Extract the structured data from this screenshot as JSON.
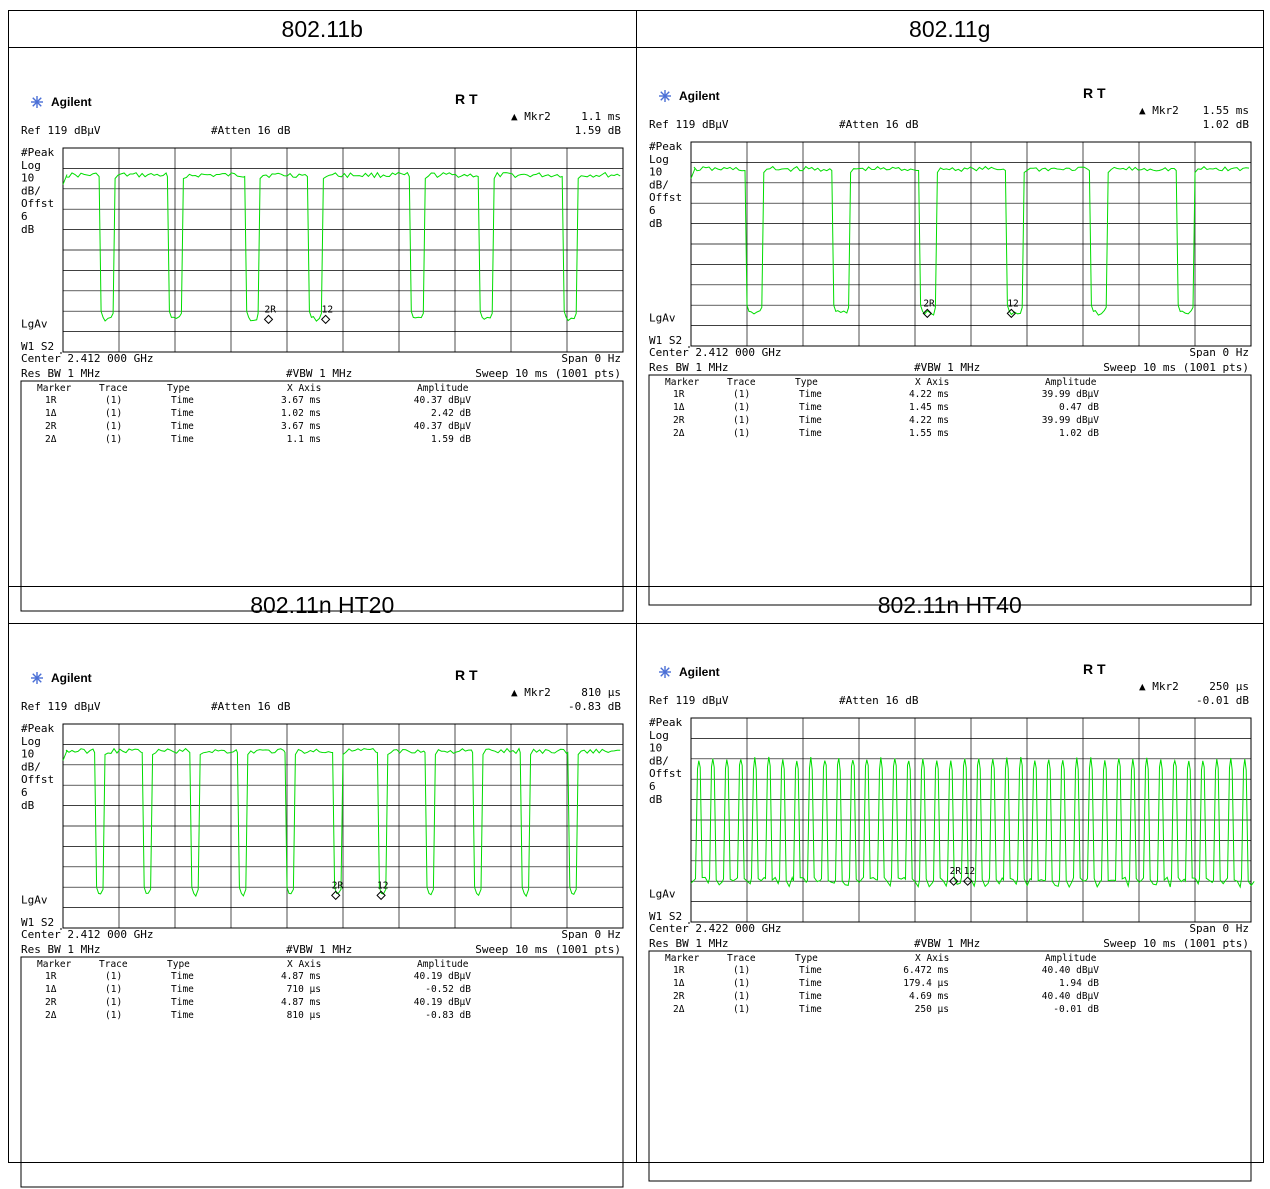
{
  "panels": [
    {
      "title": "802.11b",
      "brand": "Agilent",
      "rt": "R  T",
      "mkr_label": "▲ Mkr2",
      "mkr_value": "1.1 ms",
      "mkr_amp": "1.59 dB",
      "ref": "Ref 119 dBµV",
      "atten": "#Atten 16 dB",
      "left_labels": [
        "#Peak",
        "Log",
        "10",
        "dB/",
        "Offst",
        "6",
        "dB"
      ],
      "lgav": "LgAv",
      "w1s2": "W1  S2",
      "center": "Center 2.412 000 GHz",
      "span": "Span 0 Hz",
      "res_bw": "Res BW 1 MHz",
      "vbw": "#VBW 1 MHz",
      "sweep": "Sweep 10 ms (1001 pts)",
      "table_headers": [
        "Marker",
        "Trace",
        "Type",
        "X Axis",
        "Amplitude"
      ],
      "table_rows": [
        [
          "1R",
          "(1)",
          "Time",
          "3.67 ms",
          "40.37 dBµV"
        ],
        [
          "1Δ",
          "(1)",
          "Time",
          "1.02 ms",
          "2.42 dB"
        ],
        [
          "2R",
          "(1)",
          "Time",
          "3.67 ms",
          "40.37 dBµV"
        ],
        [
          "2Δ",
          "(1)",
          "Time",
          "1.1 ms",
          "1.59 dB"
        ]
      ],
      "markers": [
        {
          "label": "2R",
          "x_ms": 3.67
        },
        {
          "label": "12",
          "x_ms": 4.69
        }
      ],
      "chart_data": {
        "type": "line",
        "x_unit": "ms",
        "xlim": [
          0,
          10
        ],
        "high_level_div": 1.3,
        "low_level_div": 8.4,
        "dips_ms": [
          [
            0.7,
            0.9
          ],
          [
            2.6,
            2.8
          ],
          [
            4.1,
            4.3
          ],
          [
            5.8,
            6.0
          ],
          [
            7.6,
            7.8
          ],
          [
            8.7,
            8.9
          ],
          [
            3.7,
            3.8
          ],
          [
            4.7,
            4.8
          ]
        ],
        "dips_list": [
          [
            0.68,
            0.93
          ],
          [
            1.9,
            2.15
          ],
          [
            3.28,
            3.52
          ],
          [
            4.4,
            4.65
          ],
          [
            6.22,
            6.47
          ],
          [
            7.45,
            7.7
          ],
          [
            8.95,
            9.2
          ]
        ]
      }
    },
    {
      "title": "802.11g",
      "brand": "Agilent",
      "rt": "R  T",
      "mkr_label": "▲ Mkr2",
      "mkr_value": "1.55 ms",
      "mkr_amp": "1.02 dB",
      "ref": "Ref 119 dBµV",
      "atten": "#Atten 16 dB",
      "left_labels": [
        "#Peak",
        "Log",
        "10",
        "dB/",
        "Offst",
        "6",
        "dB"
      ],
      "lgav": "LgAv",
      "w1s2": "W1  S2",
      "center": "Center 2.412 000 GHz",
      "span": "Span 0 Hz",
      "res_bw": "Res BW 1 MHz",
      "vbw": "#VBW 1 MHz",
      "sweep": "Sweep 10 ms (1001 pts)",
      "table_headers": [
        "Marker",
        "Trace",
        "Type",
        "X Axis",
        "Amplitude"
      ],
      "table_rows": [
        [
          "1R",
          "(1)",
          "Time",
          "4.22 ms",
          "39.99 dBµV"
        ],
        [
          "1Δ",
          "(1)",
          "Time",
          "1.45 ms",
          "0.47 dB"
        ],
        [
          "2R",
          "(1)",
          "Time",
          "4.22 ms",
          "39.99 dBµV"
        ],
        [
          "2Δ",
          "(1)",
          "Time",
          "1.55 ms",
          "1.02 dB"
        ]
      ],
      "markers": [
        {
          "label": "2R",
          "x_ms": 4.22
        },
        {
          "label": "12",
          "x_ms": 5.72
        }
      ],
      "chart_data": {
        "type": "line",
        "x_unit": "ms",
        "xlim": [
          0,
          10
        ],
        "high_level_div": 1.3,
        "low_level_div": 8.4,
        "dips_list": [
          [
            1.0,
            1.3
          ],
          [
            2.55,
            2.85
          ],
          [
            4.1,
            4.4
          ],
          [
            5.65,
            5.95
          ],
          [
            7.15,
            7.45
          ],
          [
            8.7,
            9.0
          ]
        ]
      }
    },
    {
      "title": "802.11n HT20",
      "brand": "Agilent",
      "rt": "R  T",
      "mkr_label": "▲ Mkr2",
      "mkr_value": "810 µs",
      "mkr_amp": "-0.83 dB",
      "ref": "Ref 119 dBµV",
      "atten": "#Atten 16 dB",
      "left_labels": [
        "#Peak",
        "Log",
        "10",
        "dB/",
        "Offst",
        "6",
        "dB"
      ],
      "lgav": "LgAv",
      "w1s2": "W1  S2",
      "center": "Center 2.412 000 GHz",
      "span": "Span 0 Hz",
      "res_bw": "Res BW 1 MHz",
      "vbw": "#VBW 1 MHz",
      "sweep": "Sweep 10 ms (1001 pts)",
      "table_headers": [
        "Marker",
        "Trace",
        "Type",
        "X Axis",
        "Amplitude"
      ],
      "table_rows": [
        [
          "1R",
          "(1)",
          "Time",
          "4.87 ms",
          "40.19 dBµV"
        ],
        [
          "1Δ",
          "(1)",
          "Time",
          "710 µs",
          "-0.52 dB"
        ],
        [
          "2R",
          "(1)",
          "Time",
          "4.87 ms",
          "40.19 dBµV"
        ],
        [
          "2Δ",
          "(1)",
          "Time",
          "810 µs",
          "-0.83 dB"
        ]
      ],
      "markers": [
        {
          "label": "2R",
          "x_ms": 4.87
        },
        {
          "label": "12",
          "x_ms": 5.68
        }
      ],
      "chart_data": {
        "type": "line",
        "x_unit": "ms",
        "xlim": [
          0,
          10
        ],
        "high_level_div": 1.3,
        "low_level_div": 8.4,
        "dips_list": [
          [
            0.6,
            0.75
          ],
          [
            1.45,
            1.6
          ],
          [
            2.3,
            2.45
          ],
          [
            3.15,
            3.3
          ],
          [
            4.0,
            4.15
          ],
          [
            4.85,
            5.0
          ],
          [
            5.65,
            5.8
          ],
          [
            6.5,
            6.65
          ],
          [
            7.35,
            7.5
          ],
          [
            8.2,
            8.35
          ],
          [
            9.05,
            9.2
          ]
        ]
      }
    },
    {
      "title": "802.11n HT40",
      "brand": "Agilent",
      "rt": "R  T",
      "mkr_label": "▲ Mkr2",
      "mkr_value": "250 µs",
      "mkr_amp": "-0.01 dB",
      "ref": "Ref 119 dBµV",
      "atten": "#Atten 16 dB",
      "left_labels": [
        "#Peak",
        "Log",
        "10",
        "dB/",
        "Offst",
        "6",
        "dB"
      ],
      "lgav": "LgAv",
      "w1s2": "W1  S2",
      "center": "Center 2.422 000 GHz",
      "span": "Span 0 Hz",
      "res_bw": "Res BW 1 MHz",
      "vbw": "#VBW 1 MHz",
      "sweep": "Sweep 10 ms (1001 pts)",
      "table_headers": [
        "Marker",
        "Trace",
        "Type",
        "X Axis",
        "Amplitude"
      ],
      "table_rows": [
        [
          "1R",
          "(1)",
          "Time",
          "6.472 ms",
          "40.40 dBµV"
        ],
        [
          "1Δ",
          "(1)",
          "Time",
          "179.4 µs",
          "1.94 dB"
        ],
        [
          "2R",
          "(1)",
          "Time",
          "4.69 ms",
          "40.40 dBµV"
        ],
        [
          "2Δ",
          "(1)",
          "Time",
          "250 µs",
          "-0.01 dB"
        ]
      ],
      "markers": [
        {
          "label": "2R",
          "x_ms": 4.69
        },
        {
          "label": "12",
          "x_ms": 4.94
        }
      ],
      "chart_data": {
        "type": "line",
        "x_unit": "ms",
        "xlim": [
          0,
          10
        ],
        "high_level_div": 2.3,
        "low_level_div": 8.0,
        "burst_period_ms": 0.25,
        "burst_on_ms": 0.12
      }
    }
  ],
  "colors": {
    "trace": "#00dd00",
    "grid": "#000000",
    "marker": "#000000"
  }
}
